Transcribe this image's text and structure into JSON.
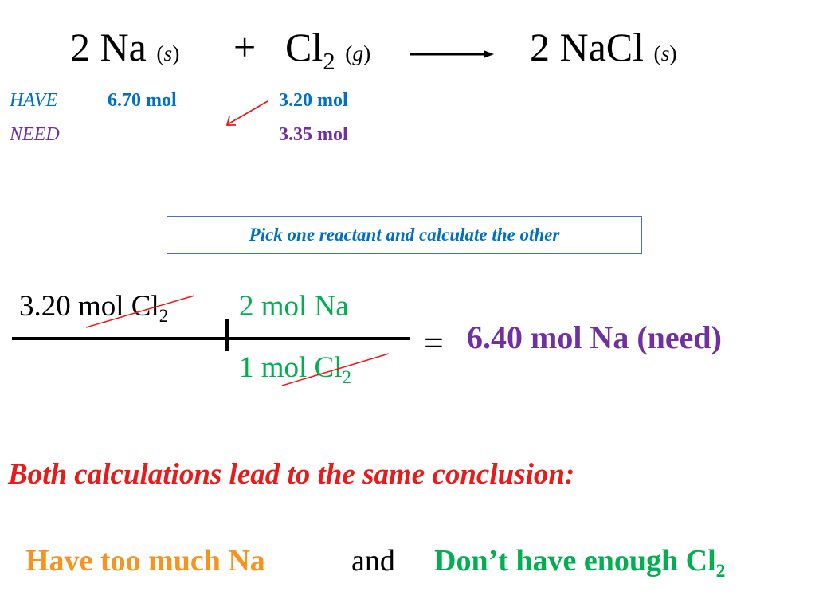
{
  "equation": {
    "reactant1": "2 Na",
    "reactant1_state": "s",
    "plus": "+",
    "reactant2": "Cl",
    "reactant2_sub": "2",
    "reactant2_state": "g",
    "product": "2 NaCl",
    "product_state": "s"
  },
  "have": {
    "label": "HAVE",
    "na": "6.70 mol",
    "cl2": "3.20 mol"
  },
  "need": {
    "label": "NEED",
    "cl2": "3.35 mol"
  },
  "instruction": "Pick one reactant and calculate the other",
  "calculation": {
    "given": "3.20 mol Cl",
    "given_sub": "2",
    "numerator": "2 mol Na",
    "denominator": "1 mol Cl",
    "denominator_sub": "2",
    "equals": "=",
    "result": "6.40 mol Na (need)"
  },
  "conclusion": "Both calculations lead to the same conclusion:",
  "summary": {
    "part1": "Have too much Na",
    "joiner": "and",
    "part2": "Don’t have enough Cl",
    "part2_sub": "2"
  },
  "colors": {
    "blue": "#0070C0",
    "purple": "#7030A0",
    "green": "#00B050",
    "red": "#E81A1A",
    "orange": "#F7931E",
    "box_border": "#4472C4"
  }
}
